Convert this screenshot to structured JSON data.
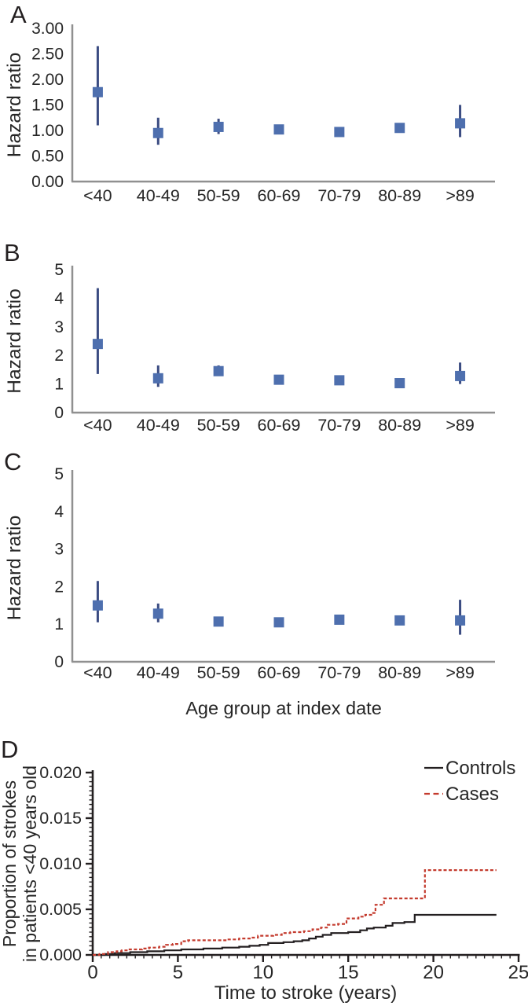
{
  "panels": [
    {
      "letter": "A"
    },
    {
      "letter": "B"
    },
    {
      "letter": "C"
    },
    {
      "letter": "D"
    }
  ],
  "colors": {
    "marker": "#4e6fae",
    "error_bar": "#3b4c82",
    "axis_gray": "#909090",
    "axis_black": "#231f20",
    "text": "#262626",
    "controls_line": "#231f20",
    "cases_line": "#c43b2e"
  },
  "chart_data": [
    {
      "type": "scatter",
      "panel": "A",
      "ylabel": "Hazard ratio",
      "xlabel": "",
      "categories": [
        "<40",
        "40-49",
        "50-59",
        "60-69",
        "70-79",
        "80-89",
        ">89"
      ],
      "ylim": [
        0,
        3
      ],
      "yticks": [
        0,
        0.5,
        1,
        1.5,
        2,
        2.5,
        3
      ],
      "ytick_decimals": 2,
      "grid": false,
      "series": [
        {
          "name": "hazard-ratio",
          "values": [
            1.75,
            0.95,
            1.07,
            1.02,
            0.97,
            1.05,
            1.14
          ],
          "ci_low": [
            1.1,
            0.72,
            0.93,
            0.95,
            0.92,
            0.97,
            0.87
          ],
          "ci_high": [
            2.65,
            1.25,
            1.23,
            1.1,
            1.02,
            1.13,
            1.5
          ]
        }
      ]
    },
    {
      "type": "scatter",
      "panel": "B",
      "ylabel": "Hazard ratio",
      "xlabel": "",
      "categories": [
        "<40",
        "40-49",
        "50-59",
        "60-69",
        "70-79",
        "80-89",
        ">89"
      ],
      "ylim": [
        0,
        5
      ],
      "yticks": [
        0,
        1,
        2,
        3,
        4,
        5
      ],
      "ytick_decimals": 0,
      "grid": false,
      "series": [
        {
          "name": "hazard-ratio",
          "values": [
            2.4,
            1.2,
            1.45,
            1.15,
            1.13,
            1.03,
            1.28
          ],
          "ci_low": [
            1.35,
            0.9,
            1.28,
            1.08,
            1.07,
            0.96,
            1.0
          ],
          "ci_high": [
            4.35,
            1.65,
            1.65,
            1.23,
            1.19,
            1.1,
            1.75
          ]
        }
      ]
    },
    {
      "type": "scatter",
      "panel": "C",
      "ylabel": "Hazard ratio",
      "xlabel": "Age group at index date",
      "categories": [
        "<40",
        "40-49",
        "50-59",
        "60-69",
        "70-79",
        "80-89",
        ">89"
      ],
      "ylim": [
        0,
        5
      ],
      "yticks": [
        0,
        1,
        2,
        3,
        4,
        5
      ],
      "ytick_decimals": 0,
      "grid": false,
      "series": [
        {
          "name": "hazard-ratio",
          "values": [
            1.5,
            1.28,
            1.07,
            1.05,
            1.12,
            1.1,
            1.1
          ],
          "ci_low": [
            1.05,
            1.05,
            0.98,
            1.0,
            1.06,
            1.02,
            0.72
          ],
          "ci_high": [
            2.15,
            1.55,
            1.16,
            1.11,
            1.18,
            1.18,
            1.65
          ]
        }
      ]
    },
    {
      "type": "line",
      "panel": "D",
      "xlabel": "Time to stroke (years)",
      "ylabel_lines": [
        "Proportion of strokes",
        "in patients <40 years old"
      ],
      "xlim": [
        0,
        25
      ],
      "ylim": [
        0,
        0.02
      ],
      "xticks": [
        0,
        5,
        10,
        15,
        20,
        25
      ],
      "yticks": [
        0,
        0.005,
        0.01,
        0.015,
        0.02
      ],
      "ytick_decimals": 3,
      "x_minor_step": 0.5,
      "y_minor_step": 0.0005,
      "legend_position": "top-right",
      "legend": [
        "Controls",
        "Cases"
      ],
      "series": [
        {
          "name": "Controls",
          "style": "solid",
          "points": [
            [
              0,
              0
            ],
            [
              0.7,
              0.0001
            ],
            [
              1.3,
              0.0002
            ],
            [
              2.2,
              0.0003
            ],
            [
              3.2,
              0.0004
            ],
            [
              4.2,
              0.0005
            ],
            [
              5.2,
              0.0006
            ],
            [
              6.5,
              0.0007
            ],
            [
              7.6,
              0.0008
            ],
            [
              8.6,
              0.0009
            ],
            [
              9.2,
              0.001
            ],
            [
              9.8,
              0.0011
            ],
            [
              10.3,
              0.0013
            ],
            [
              11.2,
              0.0014
            ],
            [
              11.8,
              0.0015
            ],
            [
              12.3,
              0.0016
            ],
            [
              12.7,
              0.0018
            ],
            [
              13.1,
              0.002
            ],
            [
              13.5,
              0.0022
            ],
            [
              14,
              0.0024
            ],
            [
              15,
              0.0025
            ],
            [
              15.7,
              0.0027
            ],
            [
              16.1,
              0.0029
            ],
            [
              16.5,
              0.003
            ],
            [
              17.2,
              0.0032
            ],
            [
              17.6,
              0.0035
            ],
            [
              18.3,
              0.0036
            ],
            [
              18.9,
              0.0044
            ],
            [
              23.7,
              0.0044
            ]
          ]
        },
        {
          "name": "Cases",
          "style": "dashed",
          "points": [
            [
              0,
              0
            ],
            [
              0.4,
              0.0001
            ],
            [
              0.9,
              0.0003
            ],
            [
              1.4,
              0.0004
            ],
            [
              1.7,
              0.0005
            ],
            [
              2.1,
              0.0006
            ],
            [
              2.9,
              0.0007
            ],
            [
              3.3,
              0.0008
            ],
            [
              3.9,
              0.0009
            ],
            [
              4.3,
              0.0011
            ],
            [
              4.7,
              0.0012
            ],
            [
              5.2,
              0.0015
            ],
            [
              5.6,
              0.0016
            ],
            [
              7.9,
              0.0017
            ],
            [
              8.6,
              0.0018
            ],
            [
              9.3,
              0.0019
            ],
            [
              9.7,
              0.0021
            ],
            [
              10.6,
              0.0022
            ],
            [
              11.1,
              0.0024
            ],
            [
              11.6,
              0.0025
            ],
            [
              12.4,
              0.0026
            ],
            [
              12.9,
              0.0028
            ],
            [
              13.4,
              0.003
            ],
            [
              13.8,
              0.0033
            ],
            [
              14.4,
              0.0034
            ],
            [
              14.9,
              0.004
            ],
            [
              15.6,
              0.0042
            ],
            [
              16,
              0.0044
            ],
            [
              16.4,
              0.0046
            ],
            [
              16.6,
              0.0055
            ],
            [
              17.1,
              0.0062
            ],
            [
              19.5,
              0.0093
            ],
            [
              23.7,
              0.0093
            ]
          ]
        }
      ]
    }
  ]
}
